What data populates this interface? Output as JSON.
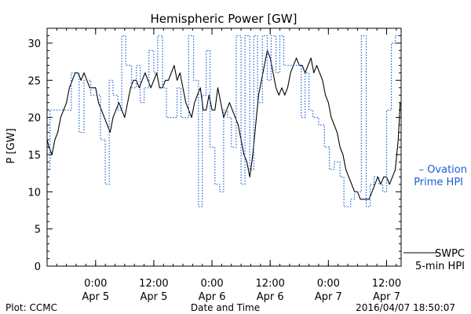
{
  "chart_data": {
    "type": "line",
    "title": "Hemispheric Power [GW]",
    "xlabel": "Date and Time",
    "ylabel": "P [GW]",
    "ylim": [
      0,
      32
    ],
    "xlim_hours": [
      -5,
      31.5
    ],
    "yticks": [
      0,
      5,
      10,
      15,
      20,
      25,
      30
    ],
    "xticks": [
      {
        "line1": "0:00",
        "line2": "Apr 5",
        "h": 0
      },
      {
        "line1": "12:00",
        "line2": "Apr 5",
        "h": 6
      },
      {
        "line1": "0:00",
        "line2": "Apr 6",
        "h": 12
      },
      {
        "line1": "12:00",
        "line2": "Apr 6",
        "h": 18
      },
      {
        "line1": "0:00",
        "line2": "Apr 7",
        "h": 24
      },
      {
        "line1": "12:00",
        "line2": "Apr 7",
        "h": 30
      }
    ],
    "series": [
      {
        "name": "SWPC 5-min HPI",
        "label_lines": [
          "SWPC",
          "5-min HPI"
        ],
        "color": "#000000",
        "style": "solid",
        "points": [
          [
            -5.0,
            17
          ],
          [
            -4.8,
            16
          ],
          [
            -4.5,
            15
          ],
          [
            -4.2,
            17
          ],
          [
            -3.9,
            18
          ],
          [
            -3.6,
            20
          ],
          [
            -3.3,
            21
          ],
          [
            -3.0,
            22
          ],
          [
            -2.7,
            24
          ],
          [
            -2.4,
            25
          ],
          [
            -2.1,
            26
          ],
          [
            -1.8,
            26
          ],
          [
            -1.5,
            25
          ],
          [
            -1.2,
            26
          ],
          [
            -0.9,
            25
          ],
          [
            -0.6,
            24
          ],
          [
            -0.3,
            24
          ],
          [
            0.0,
            24
          ],
          [
            0.3,
            22
          ],
          [
            0.6,
            21
          ],
          [
            0.9,
            20
          ],
          [
            1.2,
            19
          ],
          [
            1.5,
            18
          ],
          [
            1.8,
            20
          ],
          [
            2.1,
            21
          ],
          [
            2.4,
            22
          ],
          [
            2.7,
            21
          ],
          [
            3.0,
            20
          ],
          [
            3.3,
            22
          ],
          [
            3.6,
            24
          ],
          [
            3.9,
            25
          ],
          [
            4.2,
            25
          ],
          [
            4.5,
            24
          ],
          [
            4.8,
            25
          ],
          [
            5.1,
            26
          ],
          [
            5.4,
            25
          ],
          [
            5.7,
            24
          ],
          [
            6.0,
            25
          ],
          [
            6.3,
            26
          ],
          [
            6.6,
            24
          ],
          [
            6.9,
            24
          ],
          [
            7.2,
            25
          ],
          [
            7.5,
            25
          ],
          [
            7.8,
            26
          ],
          [
            8.1,
            27
          ],
          [
            8.4,
            25
          ],
          [
            8.7,
            26
          ],
          [
            9.0,
            24
          ],
          [
            9.3,
            22
          ],
          [
            9.6,
            21
          ],
          [
            9.9,
            20
          ],
          [
            10.2,
            22
          ],
          [
            10.5,
            23
          ],
          [
            10.8,
            24
          ],
          [
            11.1,
            21
          ],
          [
            11.4,
            21
          ],
          [
            11.7,
            23
          ],
          [
            12.0,
            21
          ],
          [
            12.3,
            21
          ],
          [
            12.6,
            24
          ],
          [
            12.9,
            22
          ],
          [
            13.2,
            20
          ],
          [
            13.5,
            21
          ],
          [
            13.8,
            22
          ],
          [
            14.1,
            21
          ],
          [
            14.4,
            20
          ],
          [
            14.7,
            19
          ],
          [
            15.0,
            17
          ],
          [
            15.3,
            15
          ],
          [
            15.6,
            14
          ],
          [
            15.9,
            12
          ],
          [
            16.2,
            15
          ],
          [
            16.5,
            19
          ],
          [
            16.8,
            23
          ],
          [
            17.1,
            25
          ],
          [
            17.4,
            27
          ],
          [
            17.7,
            29
          ],
          [
            18.0,
            28
          ],
          [
            18.3,
            26
          ],
          [
            18.6,
            24
          ],
          [
            18.9,
            23
          ],
          [
            19.2,
            24
          ],
          [
            19.5,
            23
          ],
          [
            19.8,
            24
          ],
          [
            20.1,
            26
          ],
          [
            20.4,
            27
          ],
          [
            20.7,
            28
          ],
          [
            21.0,
            27
          ],
          [
            21.3,
            27
          ],
          [
            21.6,
            26
          ],
          [
            21.9,
            27
          ],
          [
            22.2,
            28
          ],
          [
            22.5,
            26
          ],
          [
            22.8,
            27
          ],
          [
            23.1,
            26
          ],
          [
            23.4,
            25
          ],
          [
            23.7,
            23
          ],
          [
            24.0,
            22
          ],
          [
            24.3,
            20
          ],
          [
            24.6,
            19
          ],
          [
            24.9,
            18
          ],
          [
            25.2,
            16
          ],
          [
            25.5,
            15
          ],
          [
            25.8,
            13
          ],
          [
            26.1,
            12
          ],
          [
            26.4,
            11
          ],
          [
            26.7,
            10
          ],
          [
            27.0,
            10
          ],
          [
            27.3,
            9
          ],
          [
            27.6,
            9
          ],
          [
            27.9,
            9
          ],
          [
            28.2,
            9
          ],
          [
            28.5,
            10
          ],
          [
            28.8,
            11
          ],
          [
            29.1,
            12
          ],
          [
            29.4,
            11
          ],
          [
            29.7,
            12
          ],
          [
            30.0,
            12
          ],
          [
            30.3,
            11
          ],
          [
            30.6,
            12
          ],
          [
            30.9,
            13
          ],
          [
            31.2,
            17
          ],
          [
            31.4,
            22
          ]
        ]
      },
      {
        "name": "Ovation Prime HPI",
        "label_lines": [
          "– Ovation",
          "Prime HPI"
        ],
        "color": "#1a5fd0",
        "style": "dotted",
        "points": [
          [
            -5.0,
            13
          ],
          [
            -4.7,
            13
          ],
          [
            -4.7,
            21
          ],
          [
            -2.5,
            21
          ],
          [
            -2.5,
            26
          ],
          [
            -1.7,
            26
          ],
          [
            -1.7,
            18
          ],
          [
            -1.2,
            18
          ],
          [
            -1.2,
            25
          ],
          [
            -0.5,
            25
          ],
          [
            -0.5,
            23
          ],
          [
            0.5,
            23
          ],
          [
            0.5,
            17
          ],
          [
            1.0,
            17
          ],
          [
            1.0,
            11
          ],
          [
            1.4,
            11
          ],
          [
            1.4,
            25
          ],
          [
            1.8,
            25
          ],
          [
            1.8,
            23
          ],
          [
            2.3,
            23
          ],
          [
            2.3,
            21
          ],
          [
            2.7,
            21
          ],
          [
            2.7,
            31
          ],
          [
            3.1,
            31
          ],
          [
            3.1,
            27
          ],
          [
            3.7,
            27
          ],
          [
            3.7,
            24
          ],
          [
            4.2,
            24
          ],
          [
            4.2,
            27
          ],
          [
            4.6,
            27
          ],
          [
            4.6,
            22
          ],
          [
            5.0,
            22
          ],
          [
            5.0,
            24
          ],
          [
            5.5,
            24
          ],
          [
            5.5,
            29
          ],
          [
            6.0,
            29
          ],
          [
            6.0,
            26
          ],
          [
            6.4,
            26
          ],
          [
            6.4,
            31
          ],
          [
            6.9,
            31
          ],
          [
            6.9,
            24
          ],
          [
            7.3,
            24
          ],
          [
            7.3,
            20
          ],
          [
            8.4,
            20
          ],
          [
            8.4,
            24
          ],
          [
            8.8,
            24
          ],
          [
            8.8,
            20
          ],
          [
            9.6,
            20
          ],
          [
            9.6,
            31
          ],
          [
            10.1,
            31
          ],
          [
            10.1,
            25
          ],
          [
            10.6,
            25
          ],
          [
            10.6,
            8
          ],
          [
            11.0,
            8
          ],
          [
            11.0,
            23
          ],
          [
            11.4,
            23
          ],
          [
            11.4,
            29
          ],
          [
            11.8,
            29
          ],
          [
            11.8,
            16
          ],
          [
            12.3,
            16
          ],
          [
            12.3,
            11
          ],
          [
            12.8,
            11
          ],
          [
            12.8,
            10
          ],
          [
            13.2,
            10
          ],
          [
            13.2,
            21
          ],
          [
            13.6,
            21
          ],
          [
            13.6,
            20
          ],
          [
            14.0,
            20
          ],
          [
            14.0,
            16
          ],
          [
            14.5,
            16
          ],
          [
            14.5,
            31
          ],
          [
            15.0,
            31
          ],
          [
            15.0,
            11
          ],
          [
            15.4,
            11
          ],
          [
            15.4,
            31
          ],
          [
            15.9,
            31
          ],
          [
            15.9,
            13
          ],
          [
            16.3,
            13
          ],
          [
            16.3,
            31
          ],
          [
            16.7,
            31
          ],
          [
            16.7,
            22
          ],
          [
            17.2,
            22
          ],
          [
            17.2,
            31
          ],
          [
            17.7,
            31
          ],
          [
            17.7,
            25
          ],
          [
            18.1,
            25
          ],
          [
            18.1,
            31
          ],
          [
            18.6,
            31
          ],
          [
            18.6,
            26
          ],
          [
            19.0,
            26
          ],
          [
            19.0,
            31
          ],
          [
            19.4,
            31
          ],
          [
            19.4,
            27
          ],
          [
            21.2,
            27
          ],
          [
            21.2,
            20
          ],
          [
            21.6,
            20
          ],
          [
            21.6,
            26
          ],
          [
            22.0,
            26
          ],
          [
            22.0,
            21
          ],
          [
            22.4,
            21
          ],
          [
            22.4,
            20
          ],
          [
            23.0,
            20
          ],
          [
            23.0,
            19
          ],
          [
            23.6,
            19
          ],
          [
            23.6,
            16
          ],
          [
            24.1,
            16
          ],
          [
            24.1,
            13
          ],
          [
            24.6,
            13
          ],
          [
            24.6,
            14
          ],
          [
            25.2,
            14
          ],
          [
            25.2,
            12
          ],
          [
            25.6,
            12
          ],
          [
            25.6,
            8
          ],
          [
            26.3,
            8
          ],
          [
            26.3,
            9
          ],
          [
            26.7,
            9
          ],
          [
            26.7,
            10
          ],
          [
            27.4,
            10
          ],
          [
            27.4,
            31
          ],
          [
            27.9,
            31
          ],
          [
            27.9,
            8
          ],
          [
            28.3,
            8
          ],
          [
            28.3,
            11
          ],
          [
            28.7,
            11
          ],
          [
            28.7,
            12
          ],
          [
            29.2,
            12
          ],
          [
            29.2,
            11
          ],
          [
            29.6,
            11
          ],
          [
            29.6,
            10
          ],
          [
            30.0,
            10
          ],
          [
            30.0,
            21
          ],
          [
            30.5,
            21
          ],
          [
            30.5,
            30
          ],
          [
            30.9,
            30
          ],
          [
            30.9,
            31
          ],
          [
            31.3,
            31
          ]
        ]
      }
    ]
  },
  "footer": {
    "left": "Plot: CCMC",
    "center": "Date and Time",
    "right": "2016/04/07 18:50:07"
  }
}
